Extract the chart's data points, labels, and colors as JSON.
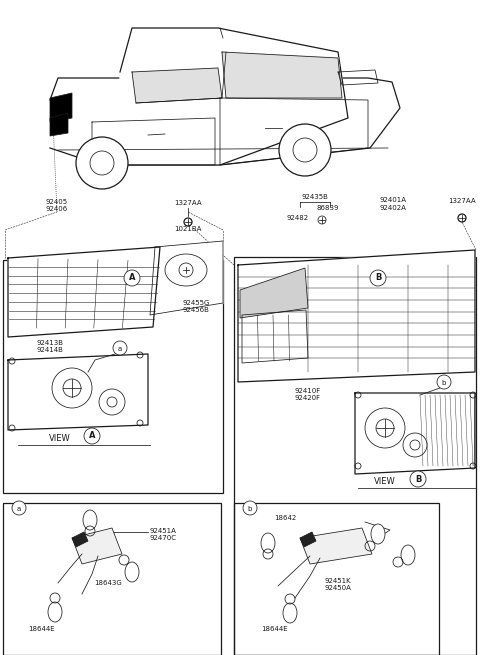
{
  "bg_color": "#ffffff",
  "line_color": "#1a1a1a",
  "fig_width": 4.8,
  "fig_height": 6.55,
  "dpi": 100,
  "labels": {
    "p92405_92406": "92405\n92406",
    "p1327AA_top": "1327AA",
    "p1021BA": "1021BA",
    "p92435B": "92435B",
    "p86839": "86839",
    "p92482": "92482",
    "p92401A_92402A": "92401A\n92402A",
    "p1327AA_right": "1327AA",
    "p92455G_92456B": "92455G\n92456B",
    "p92413B_92414B": "92413B\n92414B",
    "p92451A_92470C": "92451A\n92470C",
    "p18643G": "18643G",
    "p18644E_left": "18644E",
    "p92410F_92420F": "92410F\n92420F",
    "p18642": "18642",
    "p92451K_92450A": "92451K\n92450A",
    "p18644E_right": "18644E",
    "circle_A_enc": "Ⓐ",
    "circle_B_enc": "Ⓑ"
  }
}
